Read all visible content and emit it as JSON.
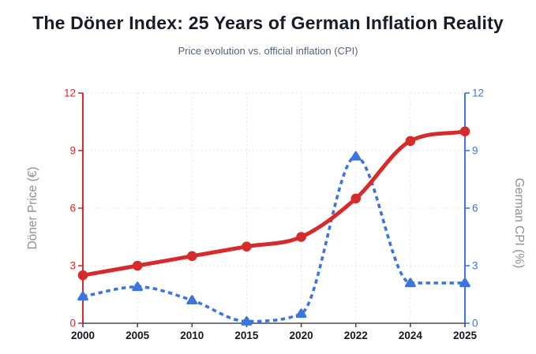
{
  "header": {
    "title": "The Döner Index: 25 Years of German Inflation Reality",
    "subtitle": "Price evolution vs. official inflation (CPI)"
  },
  "chart_data": {
    "type": "line",
    "title": "The Döner Index: 25 Years of German Inflation Reality",
    "subtitle": "Price evolution vs. official inflation (CPI)",
    "categories": [
      "2000",
      "2005",
      "2010",
      "2015",
      "2020",
      "2022",
      "2024",
      "2025"
    ],
    "series": [
      {
        "name": "Döner Price (€)",
        "axis": "left",
        "line_style": "solid",
        "marker": "circle",
        "color": "#d62b2b",
        "values": [
          2.5,
          3.0,
          3.5,
          4.0,
          4.5,
          6.5,
          9.5,
          10.0
        ]
      },
      {
        "name": "German CPI (%)",
        "axis": "right",
        "line_style": "dashed",
        "marker": "triangle",
        "color": "#3b75dd",
        "values": [
          1.4,
          1.9,
          1.2,
          0.1,
          0.5,
          8.7,
          2.1,
          2.1
        ]
      }
    ],
    "left_axis": {
      "label": "Döner Price (€)",
      "ticks": [
        0,
        3,
        6,
        9,
        12
      ],
      "range": [
        0,
        12
      ],
      "color": "#d62b2b"
    },
    "right_axis": {
      "label": "German CPI (%)",
      "ticks": [
        0,
        3,
        6,
        9,
        12
      ],
      "range": [
        0,
        12
      ],
      "color": "#3b75dd"
    },
    "x_axis": {
      "tick_color": "#14181f"
    },
    "grid": true,
    "legend": "none",
    "colors": {
      "grid": "#e4e4e4",
      "bottom_axis": "#454b54",
      "axis_title": "#8c9096",
      "title": "#161d27",
      "subtitle": "#55637a"
    }
  }
}
